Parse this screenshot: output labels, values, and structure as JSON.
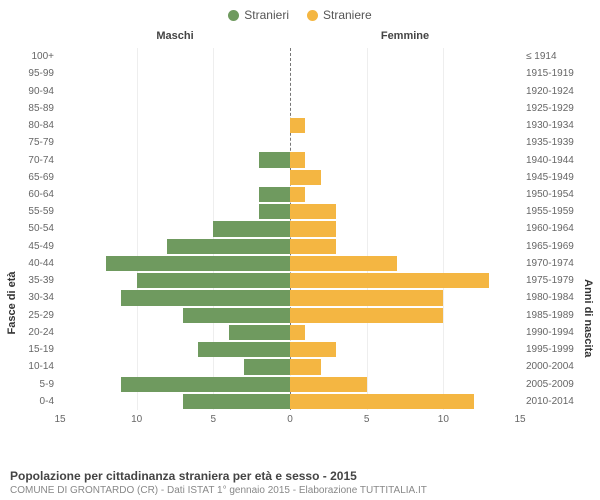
{
  "legend": {
    "male": {
      "label": "Stranieri",
      "color": "#6f9a5f"
    },
    "female": {
      "label": "Straniere",
      "color": "#f4b642"
    }
  },
  "headers": {
    "male": "Maschi",
    "female": "Femmine"
  },
  "axis_titles": {
    "left": "Fasce di età",
    "right": "Anni di nascita"
  },
  "xaxis": {
    "max": 15,
    "ticks": [
      15,
      10,
      5,
      0,
      5,
      10,
      15
    ]
  },
  "colors": {
    "male_bar": "#6f9a5f",
    "female_bar": "#f4b642",
    "grid": "#eeeeee",
    "center": "#777777",
    "bg": "#ffffff"
  },
  "rows": [
    {
      "age": "100+",
      "birth": "≤ 1914",
      "m": 0,
      "f": 0
    },
    {
      "age": "95-99",
      "birth": "1915-1919",
      "m": 0,
      "f": 0
    },
    {
      "age": "90-94",
      "birth": "1920-1924",
      "m": 0,
      "f": 0
    },
    {
      "age": "85-89",
      "birth": "1925-1929",
      "m": 0,
      "f": 0
    },
    {
      "age": "80-84",
      "birth": "1930-1934",
      "m": 0,
      "f": 1
    },
    {
      "age": "75-79",
      "birth": "1935-1939",
      "m": 0,
      "f": 0
    },
    {
      "age": "70-74",
      "birth": "1940-1944",
      "m": 2,
      "f": 1
    },
    {
      "age": "65-69",
      "birth": "1945-1949",
      "m": 0,
      "f": 2
    },
    {
      "age": "60-64",
      "birth": "1950-1954",
      "m": 2,
      "f": 1
    },
    {
      "age": "55-59",
      "birth": "1955-1959",
      "m": 2,
      "f": 3
    },
    {
      "age": "50-54",
      "birth": "1960-1964",
      "m": 5,
      "f": 3
    },
    {
      "age": "45-49",
      "birth": "1965-1969",
      "m": 8,
      "f": 3
    },
    {
      "age": "40-44",
      "birth": "1970-1974",
      "m": 12,
      "f": 7
    },
    {
      "age": "35-39",
      "birth": "1975-1979",
      "m": 10,
      "f": 13
    },
    {
      "age": "30-34",
      "birth": "1980-1984",
      "m": 11,
      "f": 10
    },
    {
      "age": "25-29",
      "birth": "1985-1989",
      "m": 7,
      "f": 10
    },
    {
      "age": "20-24",
      "birth": "1990-1994",
      "m": 4,
      "f": 1
    },
    {
      "age": "15-19",
      "birth": "1995-1999",
      "m": 6,
      "f": 3
    },
    {
      "age": "10-14",
      "birth": "2000-2004",
      "m": 3,
      "f": 2
    },
    {
      "age": "5-9",
      "birth": "2005-2009",
      "m": 11,
      "f": 5
    },
    {
      "age": "0-4",
      "birth": "2010-2014",
      "m": 7,
      "f": 12
    }
  ],
  "caption": {
    "title": "Popolazione per cittadinanza straniera per età e sesso - 2015",
    "sub": "COMUNE DI GRONTARDO (CR) - Dati ISTAT 1° gennaio 2015 - Elaborazione TUTTITALIA.IT"
  }
}
